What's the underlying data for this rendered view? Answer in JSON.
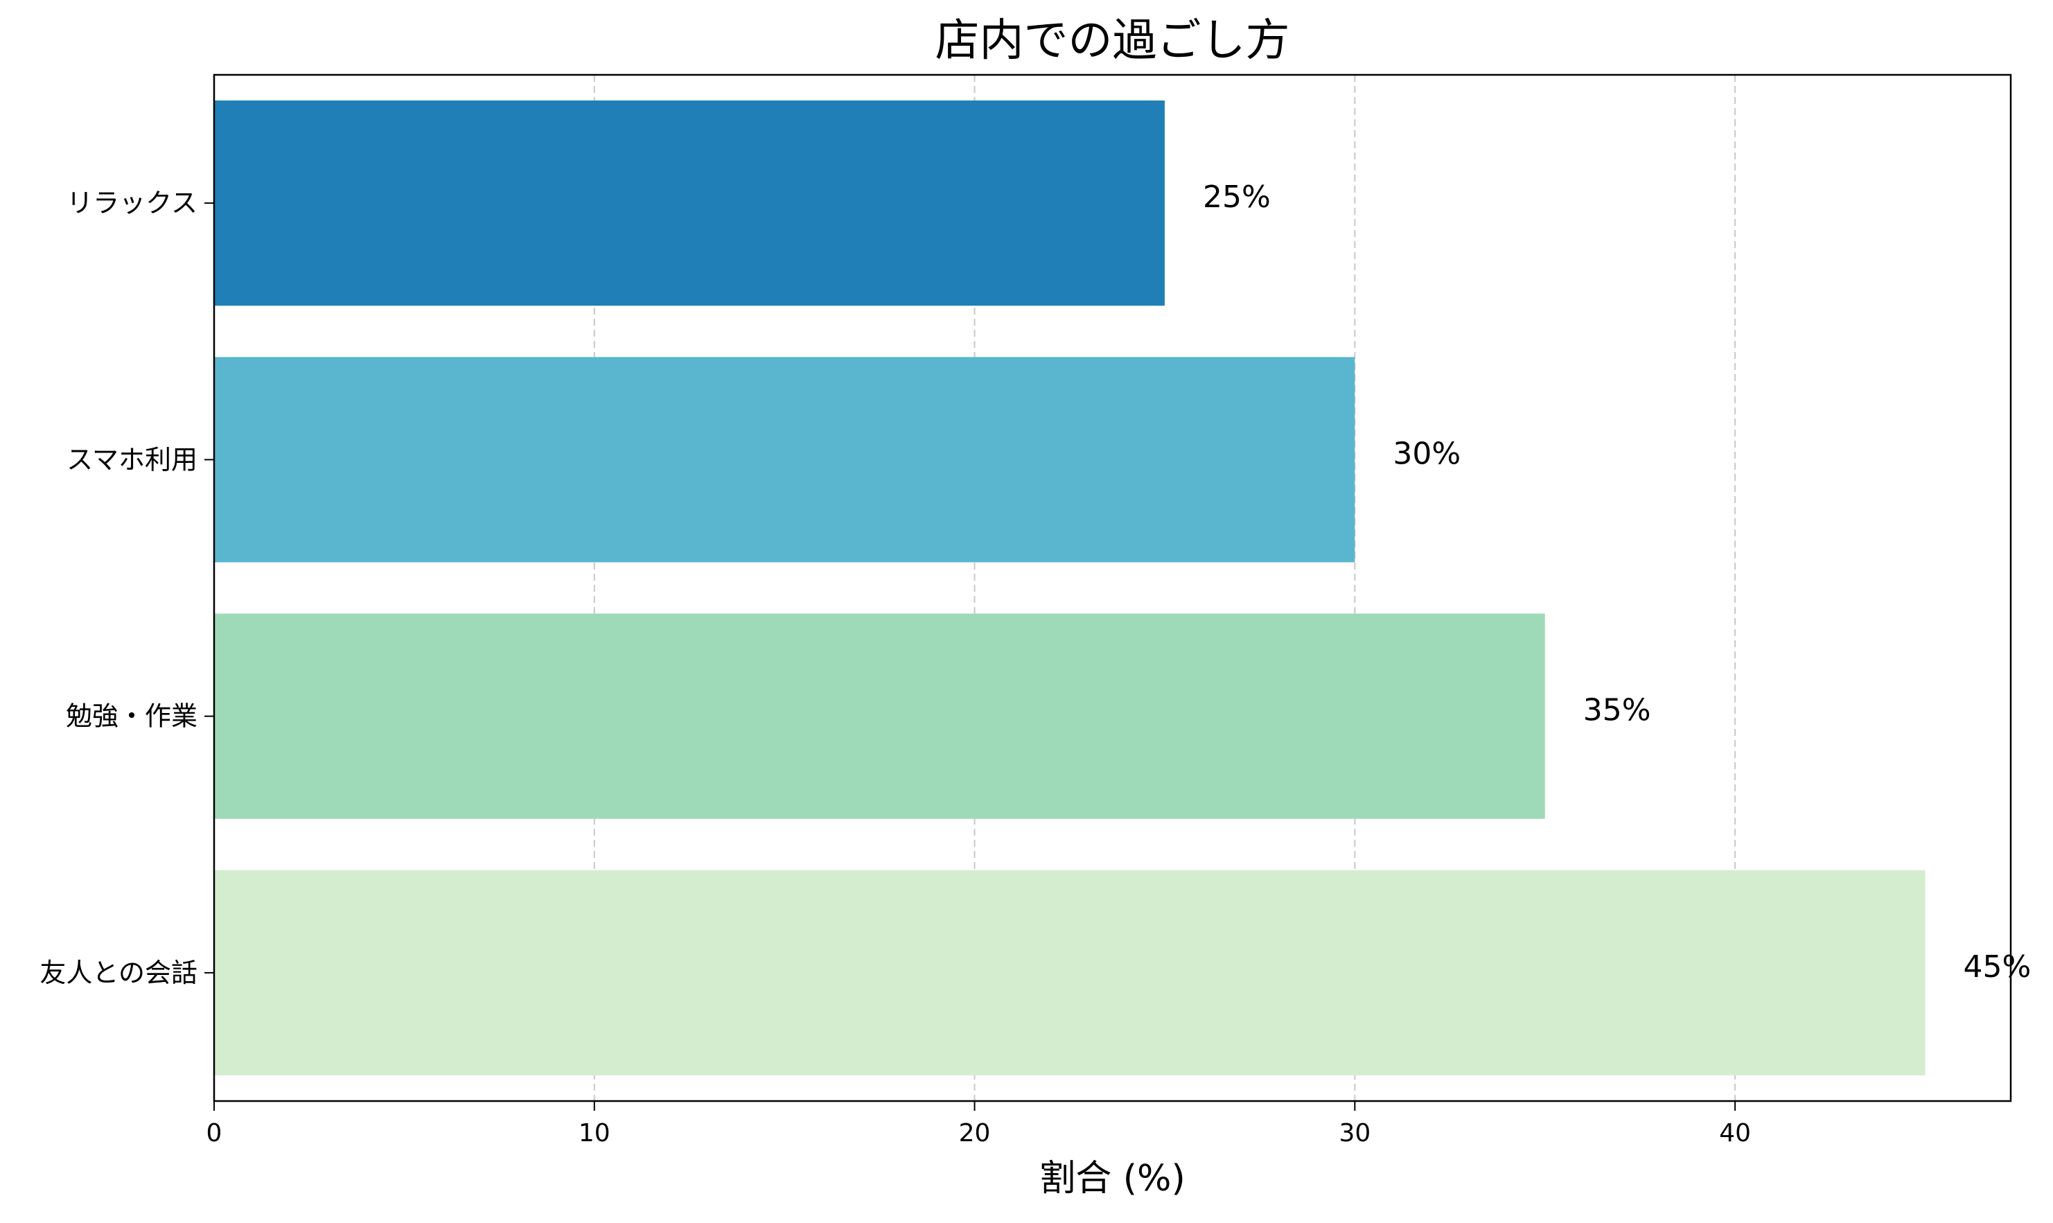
{
  "chart_data": {
    "type": "bar",
    "orientation": "horizontal",
    "title": "店内での過ごし方",
    "xlabel": "割合 (%)",
    "ylabel": "",
    "categories": [
      "リラックス",
      "スマホ利用",
      "勉強・作業",
      "友人との会話"
    ],
    "values": [
      25,
      30,
      35,
      45
    ],
    "value_labels": [
      "25%",
      "30%",
      "35%",
      "45%"
    ],
    "colors": [
      "#1f7fb6",
      "#5ab6cf",
      "#9fdab8",
      "#d4edcf"
    ],
    "xlim": [
      0,
      47.25
    ],
    "xticks": [
      0,
      10,
      20,
      30,
      40
    ],
    "grid": "x",
    "grid_style": "dashed",
    "legend": "none"
  }
}
